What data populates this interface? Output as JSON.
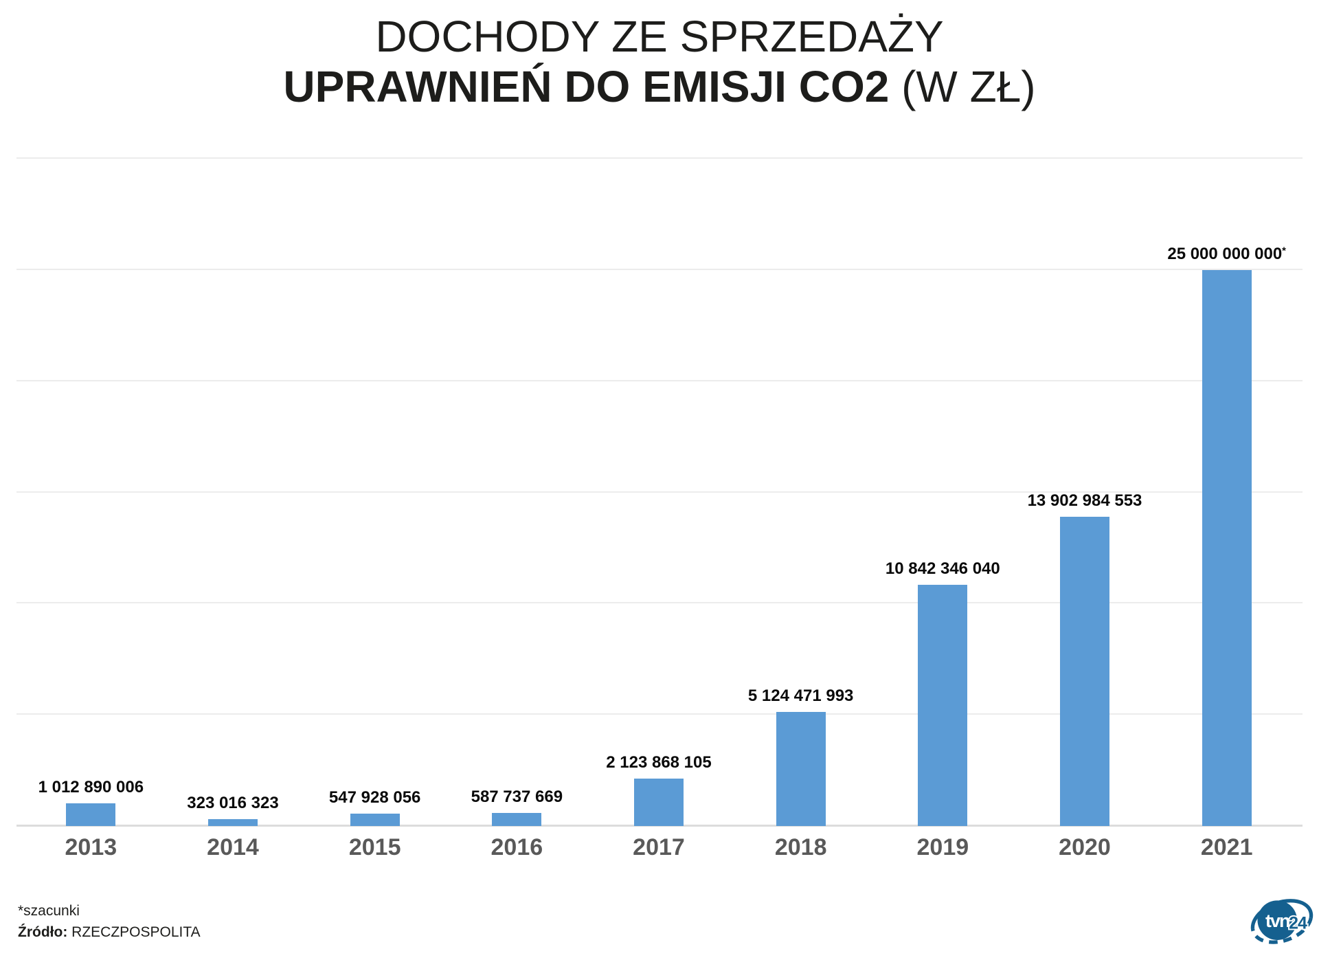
{
  "title": {
    "line1": "DOCHODY ZE SPRZEDAŻY",
    "line2_bold": "UPRAWNIEŃ DO EMISJI CO2",
    "line2_light": " (W ZŁ)"
  },
  "chart_data": {
    "type": "bar",
    "title": "DOCHODY ZE SPRZEDAŻY UPRAWNIEŃ DO EMISJI CO2 (W ZŁ)",
    "categories": [
      "2013",
      "2014",
      "2015",
      "2016",
      "2017",
      "2018",
      "2019",
      "2020",
      "2021"
    ],
    "values": [
      1012890006,
      323016323,
      547928056,
      587737669,
      2123868105,
      5124471993,
      10842346040,
      13902984553,
      25000000000
    ],
    "value_labels": [
      "1 012 890 006",
      "323 016 323",
      "547 928 056",
      "587 737 669",
      "2 123 868 105",
      "5 124 471 993",
      "10 842 346 040",
      "13 902 984 553",
      "25 000 000 000"
    ],
    "label_suffixes": [
      "",
      "",
      "",
      "",
      "",
      "",
      "",
      "",
      "*"
    ],
    "xlabel": "",
    "ylabel": "",
    "ylim": [
      0,
      30000000000
    ],
    "grid_interval": 5000000000,
    "grid": true,
    "legend": false,
    "bar_color": "#5b9bd5",
    "note": "* = szacunki (estimate)"
  },
  "footer": {
    "note": "*szacunki",
    "source_label": "Źródło:",
    "source_value": " RZECZPOSPOLITA"
  },
  "logo": {
    "name": "tvn24-logo",
    "text_main": "tvn",
    "text_num": "24",
    "color": "#15608f"
  }
}
